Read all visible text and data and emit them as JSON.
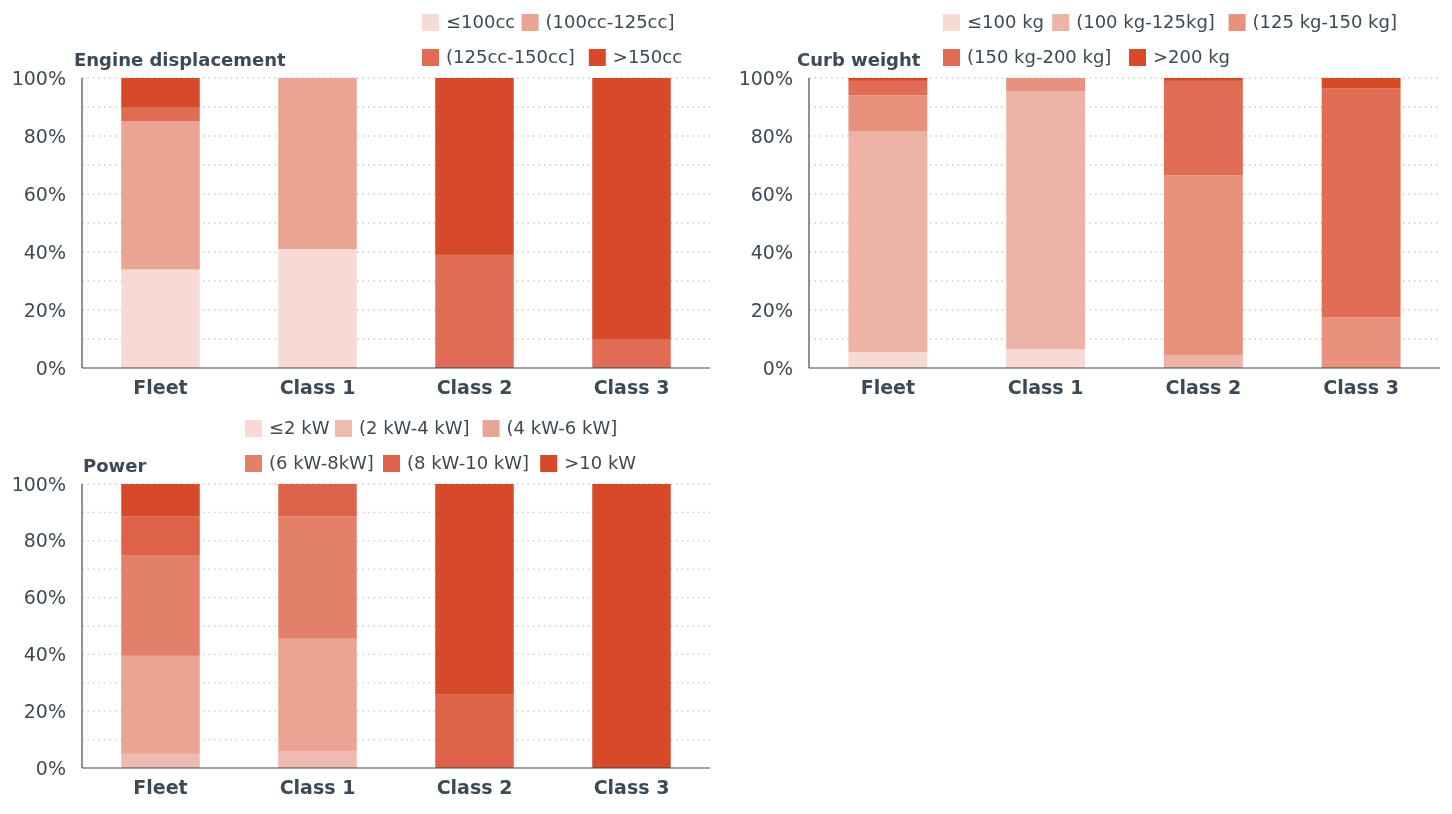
{
  "chart_data": [
    {
      "type": "bar",
      "stacked": true,
      "title": "Engine displacement",
      "categories": [
        "Fleet",
        "Class 1",
        "Class 2",
        "Class 3"
      ],
      "ylim": [
        0,
        100
      ],
      "yticks": [
        {
          "value": 0,
          "label": "0%"
        },
        {
          "value": 10,
          "label": null
        },
        {
          "value": 20,
          "label": "20%"
        },
        {
          "value": 30,
          "label": null
        },
        {
          "value": 40,
          "label": "40%"
        },
        {
          "value": 50,
          "label": null
        },
        {
          "value": 60,
          "label": "60%"
        },
        {
          "value": 70,
          "label": null
        },
        {
          "value": 80,
          "label": "80%"
        },
        {
          "value": 90,
          "label": null
        },
        {
          "value": 100,
          "label": "100%"
        }
      ],
      "grid": "y",
      "legend": "top right",
      "series": [
        {
          "name": "≤100cc",
          "color": "#f7dad4",
          "values": [
            34,
            41,
            0,
            0
          ]
        },
        {
          "name": "(100cc-125cc]",
          "color": "#e9a493",
          "values": [
            51,
            59,
            0,
            0
          ]
        },
        {
          "name": "(125cc-150cc]",
          "color": "#e06c55",
          "values": [
            5,
            0,
            39,
            10
          ]
        },
        {
          "name": ">150cc",
          "color": "#d64a29",
          "values": [
            10,
            0,
            61,
            90
          ]
        }
      ]
    },
    {
      "type": "bar",
      "stacked": true,
      "title": "Curb weight",
      "categories": [
        "Fleet",
        "Class 1",
        "Class 2",
        "Class 3"
      ],
      "ylim": [
        0,
        100
      ],
      "yticks": [
        {
          "value": 0,
          "label": "0%"
        },
        {
          "value": 10,
          "label": null
        },
        {
          "value": 20,
          "label": "20%"
        },
        {
          "value": 30,
          "label": null
        },
        {
          "value": 40,
          "label": "40%"
        },
        {
          "value": 50,
          "label": null
        },
        {
          "value": 60,
          "label": "60%"
        },
        {
          "value": 70,
          "label": null
        },
        {
          "value": 80,
          "label": "80%"
        },
        {
          "value": 90,
          "label": null
        },
        {
          "value": 100,
          "label": "100%"
        }
      ],
      "grid": "y",
      "legend": "top right",
      "series": [
        {
          "name": "≤100 kg",
          "color": "#f7dad4",
          "values": [
            5.5,
            6.5,
            0,
            0
          ]
        },
        {
          "name": "(100 kg-125kg]",
          "color": "#edb3a6",
          "values": [
            76,
            89,
            4.5,
            0
          ]
        },
        {
          "name": "(125 kg-150 kg]",
          "color": "#e8917c",
          "values": [
            12.5,
            4.5,
            62,
            17.5
          ]
        },
        {
          "name": "(150 kg-200 kg]",
          "color": "#e06c55",
          "values": [
            5,
            0,
            32.5,
            79
          ]
        },
        {
          "name": ">200 kg",
          "color": "#d64a29",
          "values": [
            1,
            0,
            1,
            3.5
          ]
        }
      ]
    },
    {
      "type": "bar",
      "stacked": true,
      "title": "Power",
      "categories": [
        "Fleet",
        "Class 1",
        "Class 2",
        "Class 3"
      ],
      "ylim": [
        0,
        100
      ],
      "yticks": [
        {
          "value": 0,
          "label": "0%"
        },
        {
          "value": 10,
          "label": null
        },
        {
          "value": 20,
          "label": "20%"
        },
        {
          "value": 30,
          "label": null
        },
        {
          "value": 40,
          "label": "40%"
        },
        {
          "value": 50,
          "label": null
        },
        {
          "value": 60,
          "label": "60%"
        },
        {
          "value": 70,
          "label": null
        },
        {
          "value": 80,
          "label": "80%"
        },
        {
          "value": 90,
          "label": null
        },
        {
          "value": 100,
          "label": "100%"
        }
      ],
      "grid": "y",
      "legend": "top right",
      "series": [
        {
          "name": "≤2 kW",
          "color": "#f7dad4",
          "values": [
            0,
            0,
            0,
            0
          ]
        },
        {
          "name": "(2 kW-4 kW]",
          "color": "#efbbb0",
          "values": [
            5,
            6,
            0,
            0
          ]
        },
        {
          "name": "(4 kW-6 kW]",
          "color": "#e9a493",
          "values": [
            34.5,
            39.5,
            0,
            0
          ]
        },
        {
          "name": "(6 kW-8kW]",
          "color": "#e2806a",
          "values": [
            35.5,
            43,
            0,
            0
          ]
        },
        {
          "name": "(8 kW-10 kW]",
          "color": "#de6249",
          "values": [
            13.5,
            11.5,
            26,
            0
          ]
        },
        {
          "name": ">10 kW",
          "color": "#d64a29",
          "values": [
            11.5,
            0,
            74,
            100
          ]
        }
      ]
    }
  ]
}
